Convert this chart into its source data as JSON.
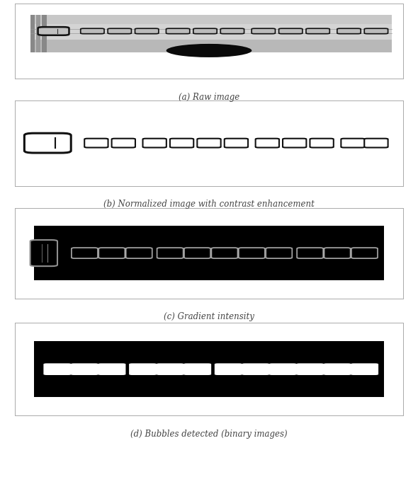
{
  "caption_a": "(a) Raw image",
  "caption_b": "(b) Normalized image with contrast enhancement",
  "caption_c": "(c) Gradient intensity",
  "caption_d": "(d) Bubbles detected (binary images)",
  "caption_fontsize": 8.5,
  "fig_bg": "#ffffff",
  "raw_gray_dark": "#888888",
  "raw_gray_mid": "#aaaaaa",
  "raw_gray_light": "#cccccc",
  "raw_gray_lighter": "#dedede",
  "raw_blob_color": "#111111",
  "raw_bubble_edge": "#111111",
  "raw_bubble_fill": "#bbbbbb",
  "norm_bg": "#ffffff",
  "norm_bubble_edge": "#111111",
  "grad_bg": "#000000",
  "grad_bubble_edge": "#aaaaaa",
  "bin_bg": "#000000",
  "bin_bubble_fill": "#ffffff",
  "panel_border_color": "#aaaaaa",
  "panel_border_lw": 0.7
}
